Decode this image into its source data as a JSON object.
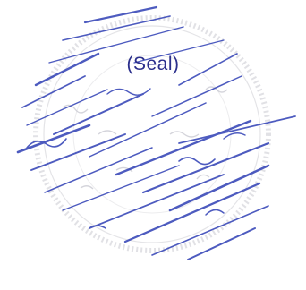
{
  "seal": {
    "label": "(Seal)",
    "ink_color": "#2f3fb5",
    "ring_color": "#c9c9cf"
  }
}
